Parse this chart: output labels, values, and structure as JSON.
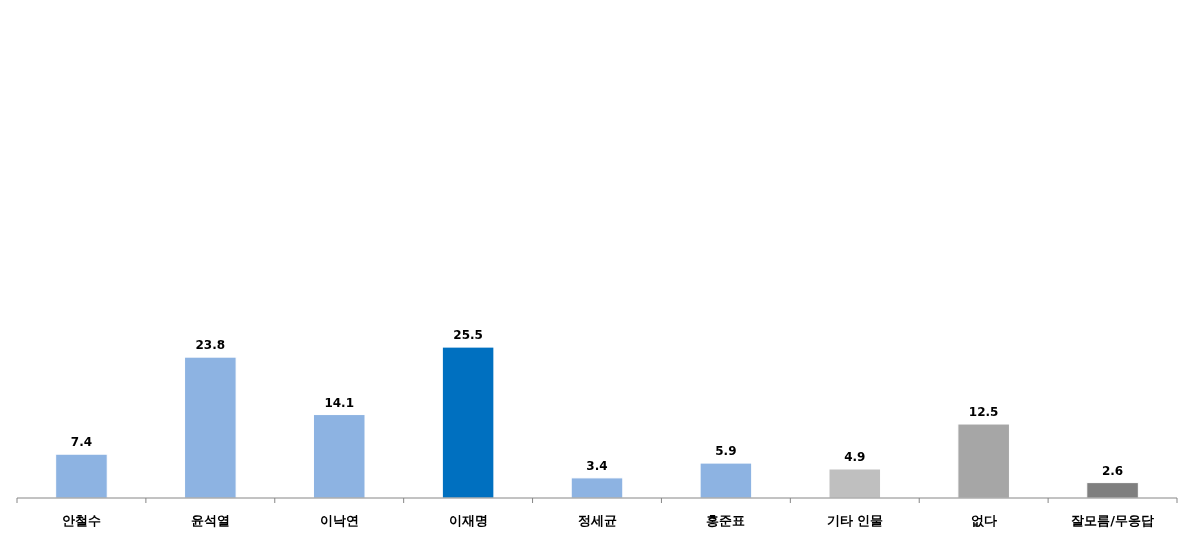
{
  "chart_data": {
    "type": "bar",
    "categories": [
      "안철수",
      "윤석열",
      "이낙연",
      "이재명",
      "정세균",
      "홍준표",
      "기타 인물",
      "없다",
      "잘모름/무응답"
    ],
    "values": [
      7.4,
      23.8,
      14.1,
      25.5,
      3.4,
      5.9,
      4.9,
      12.5,
      2.6
    ],
    "colors": [
      "#8db3e2",
      "#8db3e2",
      "#8db3e2",
      "#0070c0",
      "#8db3e2",
      "#8db3e2",
      "#bfbfbf",
      "#a6a6a6",
      "#7f7f7f"
    ],
    "data_labels": true
  }
}
